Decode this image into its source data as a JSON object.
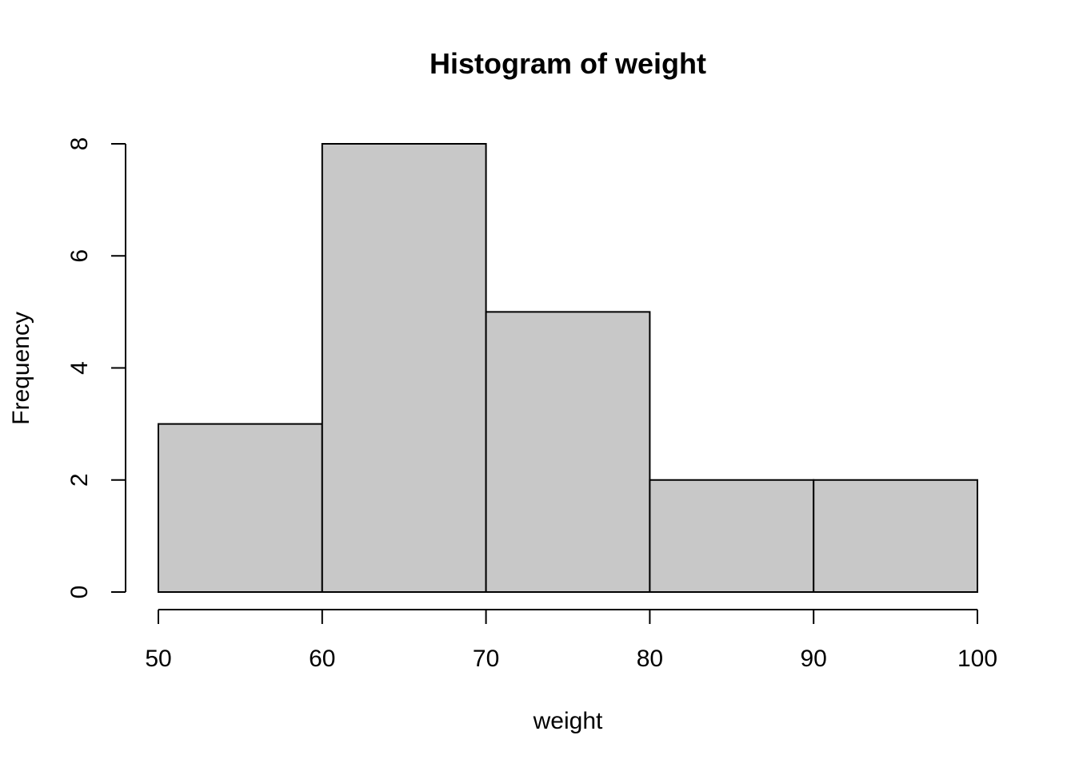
{
  "chart_data": {
    "type": "bar",
    "title": "Histogram of weight",
    "xlabel": "weight",
    "ylabel": "Frequency",
    "bins": [
      {
        "start": 50,
        "end": 60,
        "count": 3
      },
      {
        "start": 60,
        "end": 70,
        "count": 8
      },
      {
        "start": 70,
        "end": 80,
        "count": 5
      },
      {
        "start": 80,
        "end": 90,
        "count": 2
      },
      {
        "start": 90,
        "end": 100,
        "count": 2
      }
    ],
    "xlim": [
      50,
      100
    ],
    "ylim": [
      0,
      8
    ],
    "xticks": [
      "50",
      "60",
      "70",
      "80",
      "90",
      "100"
    ],
    "yticks": [
      "0",
      "2",
      "4",
      "6",
      "8"
    ],
    "bar_color": "#c8c8c8",
    "edge_color": "#000000",
    "grid": false,
    "legend": "none"
  }
}
